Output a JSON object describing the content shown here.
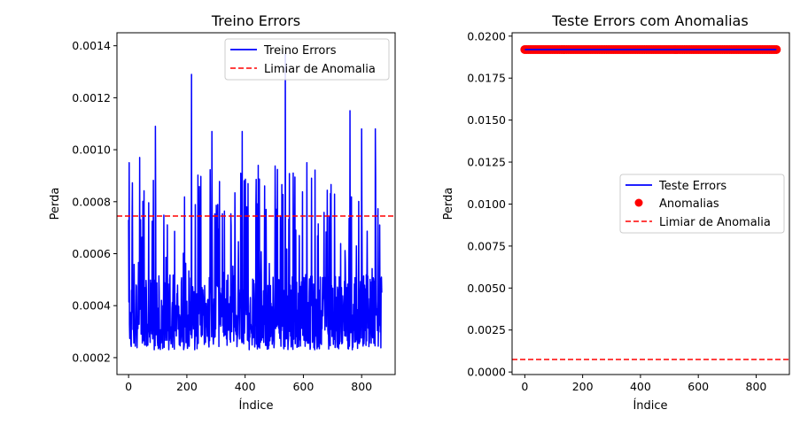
{
  "colors": {
    "treino": "#0000ff",
    "teste": "#0000ff",
    "anomalias": "#ff0000",
    "limiar": "#ff0000"
  },
  "chart_data": [
    {
      "type": "line",
      "title": "Treino Errors",
      "xlabel": "Índice",
      "ylabel": "Perda",
      "xlim": [
        -40,
        915
      ],
      "ylim": [
        0.000135,
        0.00145
      ],
      "xticks": [
        0,
        200,
        400,
        600,
        800
      ],
      "xtick_labels": [
        "0",
        "200",
        "400",
        "600",
        "800"
      ],
      "yticks": [
        0.0002,
        0.0004,
        0.0006,
        0.0008,
        0.001,
        0.0012,
        0.0014
      ],
      "ytick_labels": [
        "0.0002",
        "0.0004",
        "0.0006",
        "0.0008",
        "0.0010",
        "0.0012",
        "0.0014"
      ],
      "n_points": 870,
      "y_min": 0.0002,
      "y_max": 0.00137,
      "peaks": [
        [
          2,
          0.00095
        ],
        [
          38,
          0.00097
        ],
        [
          92,
          0.00109
        ],
        [
          216,
          0.00129
        ],
        [
          286,
          0.00107
        ],
        [
          390,
          0.00107
        ],
        [
          538,
          0.00137
        ],
        [
          612,
          0.00095
        ],
        [
          760,
          0.00115
        ],
        [
          800,
          0.00108
        ],
        [
          847,
          0.00108
        ]
      ],
      "threshold": 0.000745,
      "legend": [
        "Treino Errors",
        "Limiar de Anomalia"
      ],
      "legend_loc": "upper right",
      "grid": false
    },
    {
      "type": "line",
      "title": "Teste Errors com Anomalias",
      "xlabel": "Índice",
      "ylabel": "Perda",
      "xlim": [
        -44,
        915
      ],
      "ylim": [
        -0.00015,
        0.0202
      ],
      "xticks": [
        0,
        200,
        400,
        600,
        800
      ],
      "xtick_labels": [
        "0",
        "200",
        "400",
        "600",
        "800"
      ],
      "yticks": [
        0,
        0.0025,
        0.005,
        0.0075,
        0.01,
        0.0125,
        0.015,
        0.0175,
        0.02
      ],
      "ytick_labels": [
        "0.0000",
        "0.0025",
        "0.0050",
        "0.0075",
        "0.0100",
        "0.0125",
        "0.0150",
        "0.0175",
        "0.0200"
      ],
      "series": [
        {
          "name": "Teste Errors",
          "x_range": [
            0,
            870
          ],
          "value": 0.0192
        },
        {
          "name": "Anomalias",
          "x_range": [
            0,
            870
          ],
          "value": 0.0192,
          "marker": "circle"
        }
      ],
      "threshold": 0.000745,
      "legend": [
        "Teste Errors",
        "Anomalias",
        "Limiar de Anomalia"
      ],
      "legend_loc": "center right",
      "grid": false
    }
  ]
}
